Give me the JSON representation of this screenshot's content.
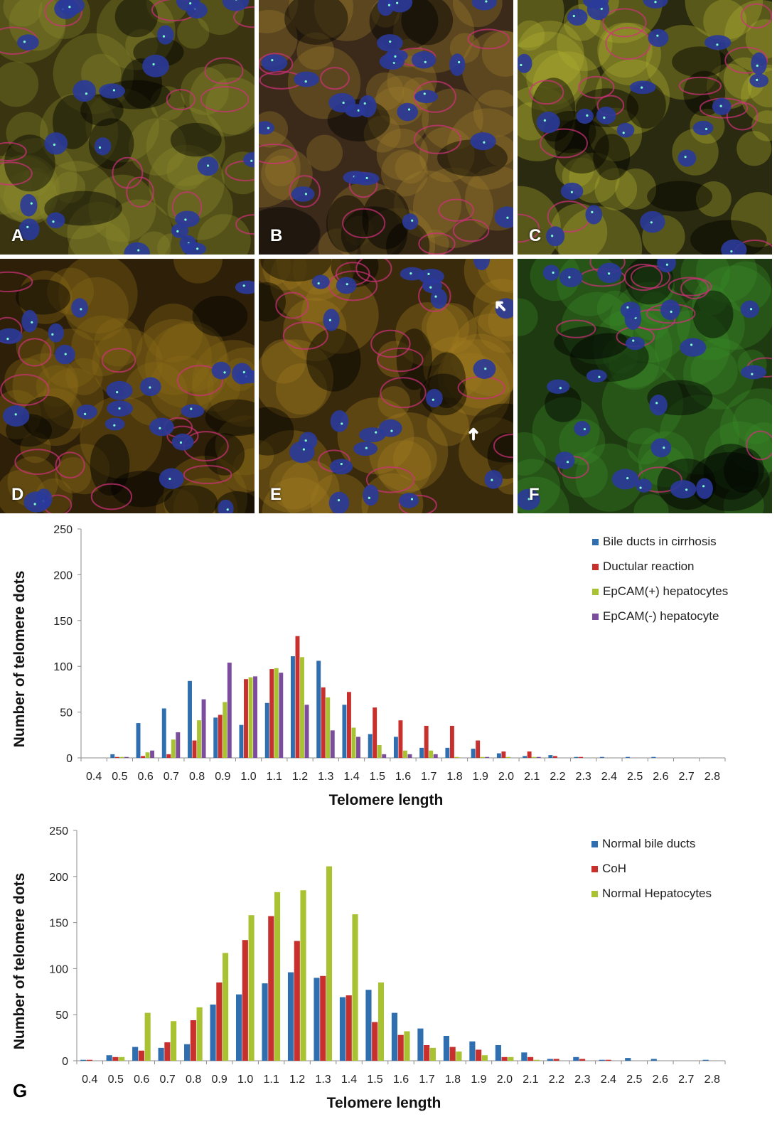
{
  "panels": [
    {
      "label": "A",
      "bg": "#3a3510",
      "tint": "#8a8a2a"
    },
    {
      "label": "B",
      "bg": "#3b2a1a",
      "tint": "#9a7a2a"
    },
    {
      "label": "C",
      "bg": "#2a2a10",
      "tint": "#b0b030"
    },
    {
      "label": "D",
      "bg": "#2e2008",
      "tint": "#8a6a18"
    },
    {
      "label": "E",
      "bg": "#3a2a0c",
      "tint": "#a07a20"
    },
    {
      "label": "F",
      "bg": "#1e3a10",
      "tint": "#3a8a28"
    }
  ],
  "chart_data": [
    {
      "type": "bar",
      "categories": [
        "0.4",
        "0.5",
        "0.6",
        "0.7",
        "0.8",
        "0.9",
        "1.0",
        "1.1",
        "1.2",
        "1.3",
        "1.4",
        "1.5",
        "1.6",
        "1.7",
        "1.8",
        "1.9",
        "2.0",
        "2.1",
        "2.2",
        "2.3",
        "2.4",
        "2.5",
        "2.6",
        "2.7",
        "2.8"
      ],
      "xlabel": "Telomere length",
      "ylabel": "Number of telomere dots",
      "ylim": [
        0,
        250
      ],
      "yticks": [
        "0",
        "50",
        "100",
        "150",
        "200",
        "250"
      ],
      "legend_position": "top-right",
      "series": [
        {
          "name": "Bile ducts in cirrhosis",
          "color": "#2f6fb0",
          "values": [
            0,
            4,
            38,
            54,
            84,
            44,
            36,
            60,
            111,
            106,
            58,
            26,
            23,
            11,
            11,
            10,
            5,
            2,
            3,
            1,
            1,
            1,
            1,
            0,
            0
          ]
        },
        {
          "name": "Ductular reaction",
          "color": "#c8302e",
          "values": [
            0,
            1,
            2,
            4,
            19,
            47,
            86,
            97,
            133,
            77,
            72,
            55,
            41,
            35,
            35,
            19,
            7,
            7,
            2,
            1,
            0,
            0,
            0,
            0,
            0
          ]
        },
        {
          "name": "EpCAM(+) hepatocytes",
          "color": "#a8c232",
          "values": [
            0,
            1,
            6,
            20,
            41,
            61,
            88,
            98,
            110,
            66,
            33,
            14,
            8,
            8,
            1,
            1,
            1,
            1,
            0,
            0,
            0,
            0,
            0,
            0,
            0
          ]
        },
        {
          "name": "EpCAM(-) hepatocyte",
          "color": "#7b4d9c",
          "values": [
            0,
            1,
            8,
            28,
            64,
            104,
            89,
            93,
            58,
            30,
            23,
            4,
            4,
            4,
            0,
            1,
            0,
            1,
            0,
            0,
            0,
            0,
            0,
            0,
            0
          ]
        }
      ]
    },
    {
      "type": "bar",
      "categories": [
        "0.4",
        "0.5",
        "0.6",
        "0.7",
        "0.8",
        "0.9",
        "1.0",
        "1.1",
        "1.2",
        "1.3",
        "1.4",
        "1.5",
        "1.6",
        "1.7",
        "1.8",
        "1.9",
        "2.0",
        "2.1",
        "2.2",
        "2.3",
        "2.4",
        "2.5",
        "2.6",
        "2.7",
        "2.8"
      ],
      "xlabel": "Telomere length",
      "ylabel": "Number of telomere dots",
      "ylim": [
        0,
        250
      ],
      "yticks": [
        "0",
        "50",
        "100",
        "150",
        "200",
        "250"
      ],
      "legend_position": "top-right",
      "series": [
        {
          "name": "Normal bile ducts",
          "color": "#2f6fb0",
          "values": [
            1,
            6,
            15,
            14,
            18,
            61,
            72,
            84,
            96,
            90,
            69,
            77,
            52,
            35,
            27,
            21,
            17,
            9,
            2,
            4,
            1,
            3,
            2,
            0,
            1
          ]
        },
        {
          "name": "CoH",
          "color": "#c8302e",
          "values": [
            1,
            4,
            11,
            20,
            44,
            85,
            131,
            157,
            130,
            92,
            71,
            42,
            28,
            17,
            15,
            12,
            4,
            4,
            2,
            2,
            1,
            0,
            0,
            0,
            0
          ]
        },
        {
          "name": "Normal Hepatocytes",
          "color": "#a8c232",
          "values": [
            0,
            4,
            52,
            43,
            58,
            117,
            158,
            183,
            185,
            211,
            159,
            85,
            32,
            14,
            10,
            6,
            4,
            1,
            0,
            0,
            0,
            0,
            0,
            0,
            0
          ]
        }
      ]
    }
  ],
  "panel_g_label": "G"
}
